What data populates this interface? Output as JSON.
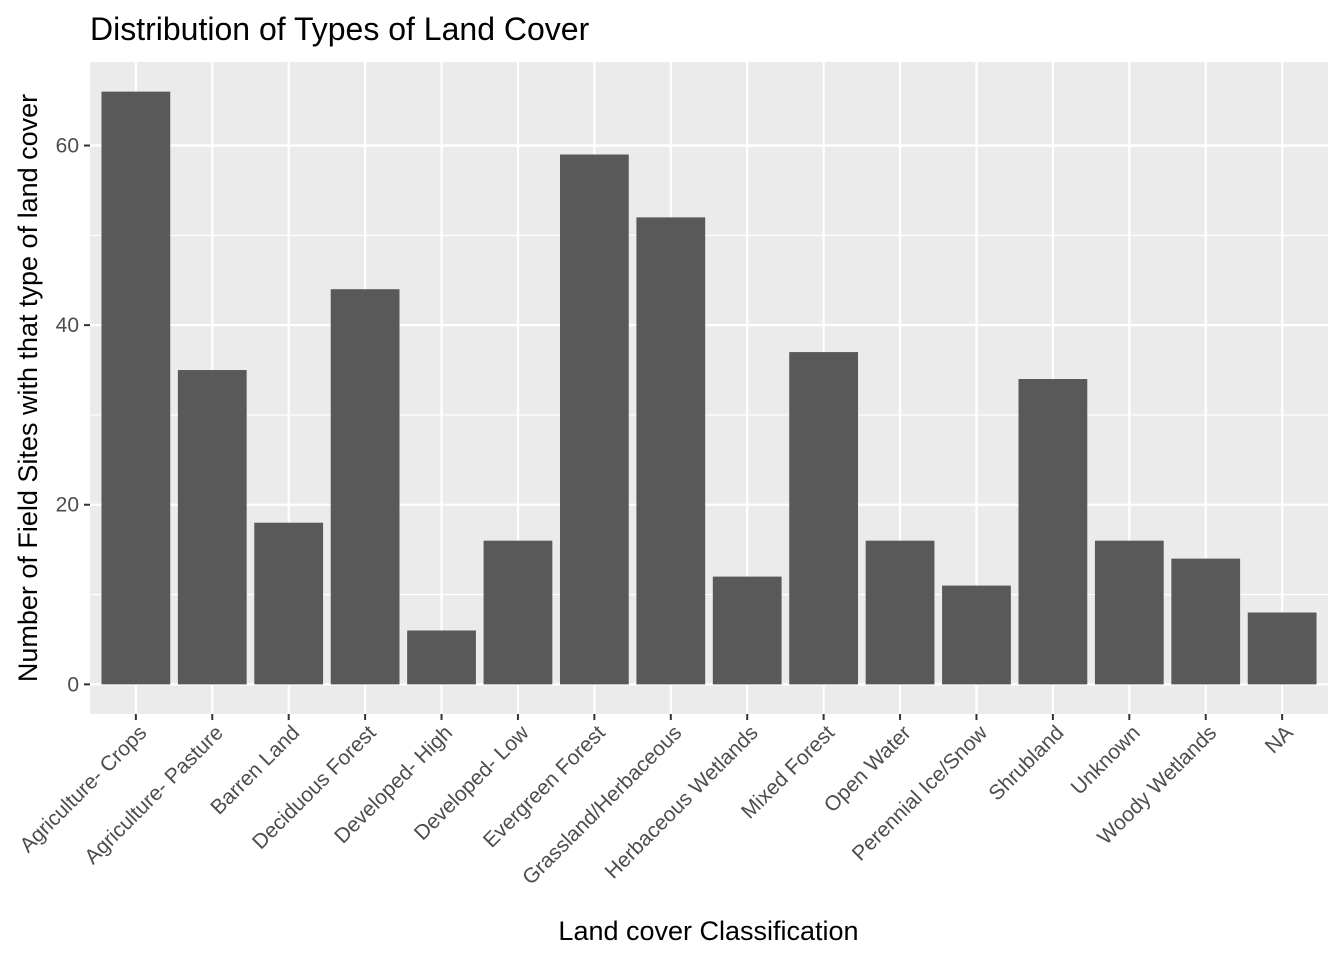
{
  "colors": {
    "panel_background": "#ebebeb",
    "grid_major": "#ffffff",
    "bar_fill": "#595959",
    "tick_text": "#4d4d4d",
    "tick_mark": "#333333"
  },
  "chart_data": {
    "type": "bar",
    "title": "Distribution of Types of Land Cover",
    "xlabel": "Land cover Classification",
    "ylabel": "Number of Field Sites with that type of land cover",
    "categories": [
      "Agriculture- Crops",
      "Agriculture- Pasture",
      "Barren Land",
      "Deciduous Forest",
      "Developed- High",
      "Developed- Low",
      "Evergreen Forest",
      "Grassland/Herbaceous",
      "Herbaceous Wetlands",
      "Mixed Forest",
      "Open Water",
      "Perennial Ice/Snow",
      "Shrubland",
      "Unknown",
      "Woody Wetlands",
      "NA"
    ],
    "values": [
      66,
      35,
      18,
      44,
      6,
      16,
      59,
      52,
      12,
      37,
      16,
      11,
      34,
      16,
      14,
      8
    ],
    "ylim": [
      -3.3,
      69.3
    ],
    "yticks": [
      0,
      20,
      40,
      60
    ],
    "ytick_labels": [
      "0",
      "20",
      "40",
      "60"
    ],
    "grid": true,
    "legend": "none"
  }
}
